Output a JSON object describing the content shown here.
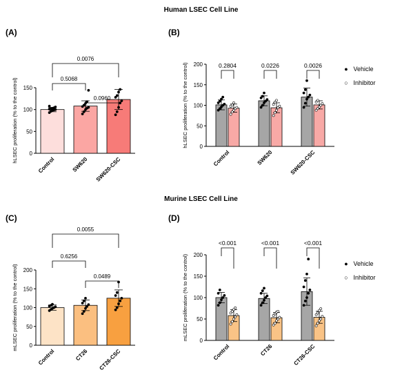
{
  "sections": {
    "human_title": "Human LSEC Cell Line",
    "murine_title": "Murine LSEC Cell Line"
  },
  "panels": {
    "a": "(A)",
    "b": "(B)",
    "c": "(C)",
    "d": "(D)"
  },
  "legend": {
    "vehicle": "Vehicle",
    "inhibitor": "Inhibitor"
  },
  "colors": {
    "vehicle": "#a6a6a6",
    "human_bars": [
      "#fddedc",
      "#fba6a3",
      "#f77b78"
    ],
    "human_inhibitor": "#f8a9a6",
    "murine_bars": [
      "#fde3c6",
      "#fbbf80",
      "#f8a040"
    ],
    "murine_inhibitor": "#f9c386"
  },
  "chart_data": [
    {
      "id": "A",
      "type": "bar",
      "ylabel": "hLSEC proliferation (% to the control)",
      "ylim": [
        0,
        150
      ],
      "yticks": [
        0,
        50,
        100,
        150
      ],
      "categories": [
        "Control",
        "SW620",
        "SW620-CSC"
      ],
      "values": [
        100,
        108,
        123
      ],
      "errors": [
        5,
        12,
        23
      ],
      "points": [
        [
          93,
          96,
          98,
          99,
          100,
          101,
          102,
          103,
          104,
          106,
          108
        ],
        [
          90,
          95,
          100,
          103,
          105,
          107,
          110,
          114,
          118,
          144
        ],
        [
          88,
          95,
          105,
          115,
          120,
          128,
          132,
          140,
          146
        ]
      ],
      "comparisons": [
        {
          "from": 0,
          "to": 1,
          "label": "0.5068"
        },
        {
          "from": 1,
          "to": 2,
          "label": "0.0960"
        },
        {
          "from": 0,
          "to": 2,
          "label": "0.0076"
        }
      ]
    },
    {
      "id": "B",
      "type": "bar",
      "ylabel": "hLSEC proliferation (% to the control)",
      "ylim": [
        0,
        200
      ],
      "yticks": [
        0,
        50,
        100,
        150,
        200
      ],
      "categories": [
        "Control",
        "SW620",
        "SW620-CSC"
      ],
      "series": [
        {
          "name": "Vehicle",
          "values": [
            101,
            111,
            120
          ],
          "errors": [
            12,
            12,
            22
          ],
          "points": [
            [
              88,
              92,
              96,
              100,
              103,
              106,
              110,
              115,
              120
            ],
            [
              95,
              100,
              106,
              110,
              114,
              118,
              122,
              130
            ],
            [
              95,
              105,
              115,
              120,
              125,
              130,
              138,
              160
            ]
          ]
        },
        {
          "name": "Inhibitor",
          "values": [
            93,
            94,
            101
          ],
          "errors": [
            10,
            12,
            10
          ],
          "points": [
            [
              78,
              84,
              88,
              92,
              95,
              98,
              101,
              106
            ],
            [
              75,
              82,
              88,
              94,
              98,
              102,
              108,
              112
            ],
            [
              88,
              92,
              96,
              100,
              104,
              108,
              112
            ]
          ]
        }
      ],
      "comparisons": [
        {
          "group": 0,
          "label": "0.2804"
        },
        {
          "group": 1,
          "label": "0.0226"
        },
        {
          "group": 2,
          "label": "0.0026"
        }
      ]
    },
    {
      "id": "C",
      "type": "bar",
      "ylabel": "mLSEC proliferation (% to the control)",
      "ylim": [
        0,
        200
      ],
      "yticks": [
        0,
        50,
        100,
        150,
        200
      ],
      "categories": [
        "Control",
        "CT26",
        "CT26-CSC"
      ],
      "values": [
        100,
        106,
        125
      ],
      "errors": [
        7,
        14,
        22
      ],
      "points": [
        [
          92,
          95,
          98,
          100,
          102,
          104,
          106,
          109
        ],
        [
          84,
          90,
          98,
          103,
          108,
          112,
          118,
          125
        ],
        [
          94,
          100,
          110,
          118,
          125,
          132,
          140,
          168
        ]
      ],
      "comparisons": [
        {
          "from": 0,
          "to": 1,
          "label": "0.6256"
        },
        {
          "from": 1,
          "to": 2,
          "label": "0.0489"
        },
        {
          "from": 0,
          "to": 2,
          "label": "0.0055"
        }
      ]
    },
    {
      "id": "D",
      "type": "bar",
      "ylabel": "mLSEC proliferation (% to the control)",
      "ylim": [
        0,
        200
      ],
      "yticks": [
        0,
        50,
        100,
        150,
        200
      ],
      "categories": [
        "Control",
        "CT26",
        "CT26-CSC"
      ],
      "series": [
        {
          "name": "Vehicle",
          "values": [
            100,
            98,
            114
          ],
          "errors": [
            12,
            12,
            32
          ],
          "points": [
            [
              82,
              88,
              95,
              100,
              105,
              110,
              118
            ],
            [
              82,
              88,
              94,
              100,
              104,
              110,
              116,
              122
            ],
            [
              82,
              92,
              100,
              110,
              118,
              125,
              140,
              155,
              190
            ]
          ]
        },
        {
          "name": "Inhibitor",
          "values": [
            58,
            53,
            54
          ],
          "errors": [
            14,
            12,
            14
          ],
          "points": [
            [
              38,
              44,
              50,
              55,
              60,
              64,
              68,
              72,
              76
            ],
            [
              36,
              40,
              46,
              50,
              54,
              58,
              62,
              66,
              68
            ],
            [
              34,
              40,
              46,
              50,
              56,
              60,
              64,
              70,
              74
            ]
          ]
        }
      ],
      "comparisons": [
        {
          "group": 0,
          "label": "<0.001"
        },
        {
          "group": 1,
          "label": "<0.001"
        },
        {
          "group": 2,
          "label": "<0.001"
        }
      ]
    }
  ]
}
